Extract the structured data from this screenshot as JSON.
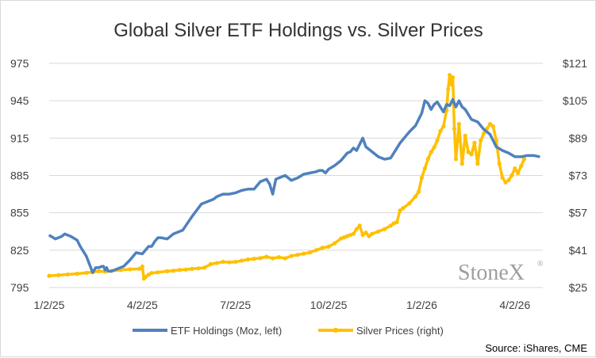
{
  "colors": {
    "etf": "#4f81bd",
    "silver": "#ffc000",
    "grid": "#d9d9d9",
    "text": "#404040"
  },
  "watermark": {
    "text": "StoneX"
  },
  "source": "Source: iShares, CME",
  "chart_data": {
    "type": "line",
    "title": "Global Silver ETF Holdings vs. Silver Prices",
    "xlabel": "",
    "ylabel": "",
    "x_ticks": [
      "1/2/25",
      "4/2/25",
      "7/2/25",
      "10/2/25",
      "1/2/26",
      "4/2/26"
    ],
    "x_tick_months": [
      0,
      3,
      6,
      9,
      12,
      15
    ],
    "xlim_months": [
      0,
      15.9
    ],
    "y_left": {
      "ticks": [
        "975",
        "945",
        "915",
        "885",
        "855",
        "825",
        "795"
      ],
      "lim": [
        795,
        975
      ]
    },
    "y_right": {
      "ticks": [
        "$121",
        "$105",
        "$89",
        "$73",
        "$57",
        "$41",
        "$25"
      ],
      "lim": [
        25,
        121
      ]
    },
    "legend": [
      "ETF Holdings (Moz, left)",
      "Silver Prices (right)"
    ],
    "legend_position": "bottom",
    "gridlines": "horizontal",
    "series": [
      {
        "name": "ETF Holdings (Moz, left)",
        "axis": "left",
        "x_months": [
          0,
          0.2,
          0.4,
          0.5,
          0.7,
          0.9,
          1.0,
          1.2,
          1.4,
          1.5,
          1.6,
          1.7,
          1.75,
          1.8,
          1.85,
          1.9,
          2.0,
          2.2,
          2.4,
          2.6,
          2.8,
          3.0,
          3.1,
          3.2,
          3.3,
          3.4,
          3.5,
          3.6,
          3.8,
          4.0,
          4.3,
          4.6,
          4.9,
          5.1,
          5.3,
          5.4,
          5.5,
          5.6,
          5.8,
          6.0,
          6.2,
          6.4,
          6.6,
          6.8,
          7.0,
          7.1,
          7.2,
          7.3,
          7.4,
          7.6,
          7.8,
          8.0,
          8.2,
          8.4,
          8.6,
          8.7,
          8.8,
          8.9,
          9.0,
          9.2,
          9.4,
          9.6,
          9.7,
          9.8,
          9.9,
          10.0,
          10.1,
          10.2,
          10.4,
          10.6,
          10.8,
          11.0,
          11.1,
          11.2,
          11.3,
          11.4,
          11.5,
          11.6,
          11.8,
          11.9,
          12.0,
          12.1,
          12.2,
          12.3,
          12.4,
          12.5,
          12.6,
          12.7,
          12.8,
          12.9,
          13.0,
          13.1,
          13.2,
          13.3,
          13.4,
          13.6,
          13.8,
          14.0,
          14.2,
          14.4,
          14.6,
          14.8,
          15.0,
          15.2,
          15.4,
          15.6,
          15.8
        ],
        "values": [
          837,
          834,
          836,
          838,
          836,
          833,
          828,
          820,
          807,
          811,
          811,
          812,
          812,
          809,
          811,
          808,
          808,
          810,
          812,
          817,
          823,
          822,
          825,
          828,
          828,
          832,
          835,
          835,
          834,
          838,
          841,
          852,
          862,
          864,
          866,
          868,
          869,
          870,
          870,
          871,
          873,
          874,
          874,
          880,
          882,
          878,
          870,
          882,
          883,
          885,
          881,
          883,
          886,
          887,
          888,
          889,
          889,
          887,
          890,
          893,
          897,
          903,
          904,
          907,
          905,
          910,
          915,
          908,
          904,
          900,
          898,
          899,
          903,
          907,
          911,
          914,
          917,
          920,
          925,
          930,
          935,
          945,
          943,
          938,
          942,
          944,
          940,
          936,
          942,
          941,
          946,
          940,
          945,
          940,
          938,
          930,
          928,
          922,
          918,
          908,
          905,
          903,
          900,
          900,
          901,
          901,
          900
        ]
      },
      {
        "name": "Silver Prices (right)",
        "axis": "right",
        "x_months": [
          0,
          0.3,
          0.6,
          0.9,
          1.2,
          1.4,
          1.6,
          1.8,
          2.0,
          2.3,
          2.6,
          2.9,
          3.0,
          3.05,
          3.1,
          3.2,
          3.3,
          3.5,
          3.8,
          4.0,
          4.2,
          4.4,
          4.6,
          4.8,
          5.0,
          5.2,
          5.4,
          5.6,
          5.8,
          6.0,
          6.2,
          6.4,
          6.6,
          6.8,
          7.0,
          7.2,
          7.4,
          7.6,
          7.8,
          8.0,
          8.2,
          8.4,
          8.6,
          8.8,
          9.0,
          9.2,
          9.4,
          9.5,
          9.6,
          9.7,
          9.8,
          9.9,
          10.0,
          10.1,
          10.2,
          10.3,
          10.4,
          10.6,
          10.8,
          11.0,
          11.1,
          11.2,
          11.3,
          11.4,
          11.6,
          11.8,
          11.9,
          12.0,
          12.1,
          12.2,
          12.3,
          12.4,
          12.5,
          12.6,
          12.7,
          12.8,
          12.85,
          12.9,
          12.95,
          13.0,
          13.05,
          13.1,
          13.2,
          13.3,
          13.4,
          13.5,
          13.6,
          13.7,
          13.8,
          13.9,
          14.0,
          14.1,
          14.2,
          14.3,
          14.4,
          14.5,
          14.6,
          14.7,
          14.8,
          14.9,
          15.0,
          15.1,
          15.2,
          15.3
        ],
        "values": [
          30.0,
          30.3,
          30.6,
          30.9,
          31.3,
          31.6,
          32.0,
          31.8,
          32.1,
          32.5,
          32.8,
          33.0,
          34.0,
          28.8,
          29.5,
          30.5,
          31.2,
          31.5,
          32.0,
          32.2,
          32.5,
          32.7,
          33.0,
          33.2,
          33.5,
          35.0,
          35.5,
          36.0,
          35.8,
          36.0,
          36.5,
          37.0,
          37.3,
          37.6,
          38.2,
          37.5,
          38.0,
          37.5,
          38.5,
          39.0,
          39.5,
          40.0,
          41.0,
          42.0,
          42.5,
          44.0,
          46.0,
          46.5,
          47.0,
          47.5,
          48.0,
          50.0,
          51.5,
          47.5,
          48.5,
          47.0,
          48.0,
          49.0,
          50.0,
          51.5,
          52.5,
          53.0,
          58.0,
          59.0,
          61.0,
          64.0,
          66.0,
          72.0,
          76.0,
          80.0,
          83.0,
          85.0,
          88.0,
          92.0,
          94.0,
          101.0,
          110.0,
          116.0,
          112.0,
          115.0,
          93.0,
          80.0,
          95.0,
          78.0,
          90.0,
          83.0,
          82.0,
          87.0,
          78.0,
          88.0,
          91.0,
          93.0,
          95.0,
          94.0,
          88.0,
          78.0,
          72.0,
          70.0,
          71.0,
          73.0,
          76.0,
          74.0,
          77.0,
          80.0
        ]
      }
    ]
  }
}
